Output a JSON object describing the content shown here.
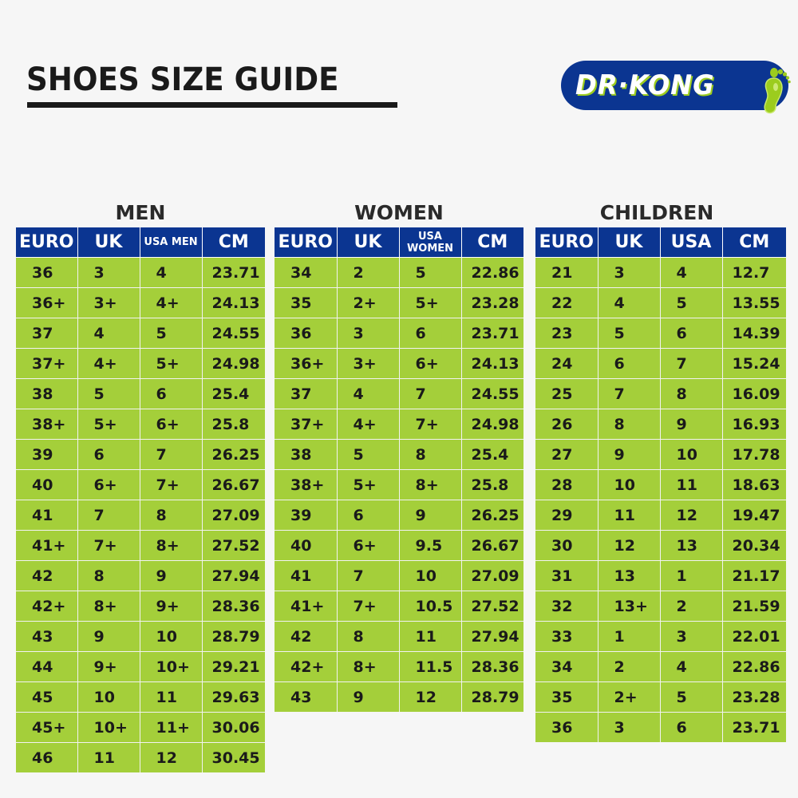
{
  "header": {
    "title": "SHOES SIZE GUIDE",
    "logo_text": "DR·KONG",
    "logo_icon": "footprint-icon"
  },
  "colors": {
    "header_blue": "#0b3591",
    "cell_green": "#a4cf3a",
    "background": "#f6f6f6",
    "text_dark": "#1a1a1a"
  },
  "men": {
    "title": "MEN",
    "columns": [
      "EURO",
      "UK",
      "USA MEN",
      "CM"
    ],
    "rows": [
      [
        "36",
        "3",
        "4",
        "23.71"
      ],
      [
        "36+",
        "3+",
        "4+",
        "24.13"
      ],
      [
        "37",
        "4",
        "5",
        "24.55"
      ],
      [
        "37+",
        "4+",
        "5+",
        "24.98"
      ],
      [
        "38",
        "5",
        "6",
        "25.4"
      ],
      [
        "38+",
        "5+",
        "6+",
        "25.8"
      ],
      [
        "39",
        "6",
        "7",
        "26.25"
      ],
      [
        "40",
        "6+",
        "7+",
        "26.67"
      ],
      [
        "41",
        "7",
        "8",
        "27.09"
      ],
      [
        "41+",
        "7+",
        "8+",
        "27.52"
      ],
      [
        "42",
        "8",
        "9",
        "27.94"
      ],
      [
        "42+",
        "8+",
        "9+",
        "28.36"
      ],
      [
        "43",
        "9",
        "10",
        "28.79"
      ],
      [
        "44",
        "9+",
        "10+",
        "29.21"
      ],
      [
        "45",
        "10",
        "11",
        "29.63"
      ],
      [
        "45+",
        "10+",
        "11+",
        "30.06"
      ],
      [
        "46",
        "11",
        "12",
        "30.45"
      ]
    ]
  },
  "women": {
    "title": "WOMEN",
    "columns": [
      "EURO",
      "UK",
      "USA WOMEN",
      "CM"
    ],
    "rows": [
      [
        "34",
        "2",
        "5",
        "22.86"
      ],
      [
        "35",
        "2+",
        "5+",
        "23.28"
      ],
      [
        "36",
        "3",
        "6",
        "23.71"
      ],
      [
        "36+",
        "3+",
        "6+",
        "24.13"
      ],
      [
        "37",
        "4",
        "7",
        "24.55"
      ],
      [
        "37+",
        "4+",
        "7+",
        "24.98"
      ],
      [
        "38",
        "5",
        "8",
        "25.4"
      ],
      [
        "38+",
        "5+",
        "8+",
        "25.8"
      ],
      [
        "39",
        "6",
        "9",
        "26.25"
      ],
      [
        "40",
        "6+",
        "9.5",
        "26.67"
      ],
      [
        "41",
        "7",
        "10",
        "27.09"
      ],
      [
        "41+",
        "7+",
        "10.5",
        "27.52"
      ],
      [
        "42",
        "8",
        "11",
        "27.94"
      ],
      [
        "42+",
        "8+",
        "11.5",
        "28.36"
      ],
      [
        "43",
        "9",
        "12",
        "28.79"
      ]
    ]
  },
  "children": {
    "title": "CHILDREN",
    "columns": [
      "EURO",
      "UK",
      "USA",
      "CM"
    ],
    "rows": [
      [
        "21",
        "3",
        "4",
        "12.7"
      ],
      [
        "22",
        "4",
        "5",
        "13.55"
      ],
      [
        "23",
        "5",
        "6",
        "14.39"
      ],
      [
        "24",
        "6",
        "7",
        "15.24"
      ],
      [
        "25",
        "7",
        "8",
        "16.09"
      ],
      [
        "26",
        "8",
        "9",
        "16.93"
      ],
      [
        "27",
        "9",
        "10",
        "17.78"
      ],
      [
        "28",
        "10",
        "11",
        "18.63"
      ],
      [
        "29",
        "11",
        "12",
        "19.47"
      ],
      [
        "30",
        "12",
        "13",
        "20.34"
      ],
      [
        "31",
        "13",
        "1",
        "21.17"
      ],
      [
        "32",
        "13+",
        "2",
        "21.59"
      ],
      [
        "33",
        "1",
        "3",
        "22.01"
      ],
      [
        "34",
        "2",
        "4",
        "22.86"
      ],
      [
        "35",
        "2+",
        "5",
        "23.28"
      ],
      [
        "36",
        "3",
        "6",
        "23.71"
      ]
    ]
  }
}
